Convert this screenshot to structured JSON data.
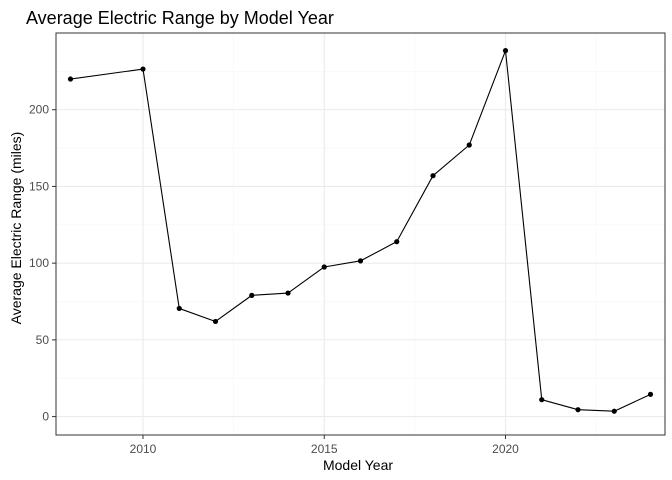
{
  "chart_data": {
    "type": "line",
    "title": "Average Electric Range by Model Year",
    "xlabel": "Model Year",
    "ylabel": "Average Electric Range (miles)",
    "x": [
      2008,
      2010,
      2011,
      2012,
      2013,
      2014,
      2015,
      2016,
      2017,
      2018,
      2019,
      2020,
      2021,
      2022,
      2023,
      2024
    ],
    "series": [
      {
        "values": [
          220,
          226.5,
          70.5,
          62,
          79,
          80.5,
          97.5,
          101.5,
          114,
          157,
          177,
          238.5,
          11,
          4.5,
          3.5,
          14.5
        ]
      }
    ],
    "xlim": [
      2007.6,
      2024.4
    ],
    "ylim": [
      -12,
      250
    ],
    "x_ticks": [
      "2010",
      "2015",
      "2020"
    ],
    "y_ticks": [
      "0",
      "50",
      "100",
      "150",
      "200"
    ],
    "grid": true,
    "legend": "none",
    "colors": {
      "line": "#000000",
      "point": "#000000",
      "grid_major": "#ebebeb",
      "grid_minor": "#f5f5f5",
      "panel_border": "#333333",
      "tick_text": "#4d4d4d"
    }
  }
}
